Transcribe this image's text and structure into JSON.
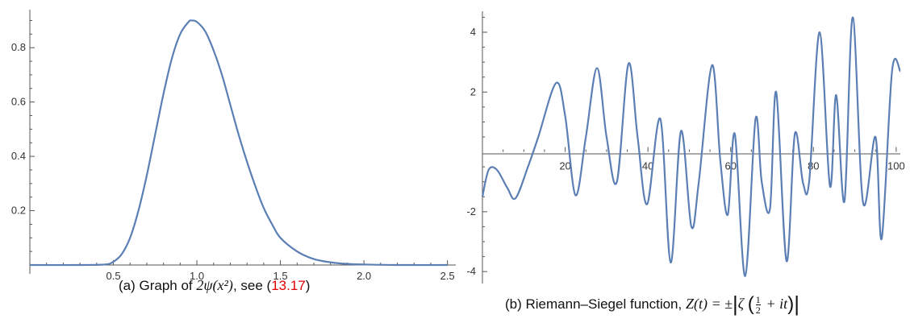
{
  "chart_data": [
    {
      "type": "line",
      "title": "",
      "xlabel": "",
      "ylabel": "",
      "xlim": [
        0,
        2.55
      ],
      "ylim": [
        0,
        0.94
      ],
      "xticks": [
        "0.5",
        "1.0",
        "1.5",
        "2.0",
        "2.5"
      ],
      "yticks": [
        "0.2",
        "0.4",
        "0.6",
        "0.8"
      ],
      "color": "#5b7fb5",
      "series": [
        {
          "x": [
            0.0,
            0.3,
            0.45,
            0.5,
            0.55,
            0.6,
            0.65,
            0.7,
            0.75,
            0.8,
            0.85,
            0.9,
            0.95,
            0.97,
            1.0,
            1.05,
            1.1,
            1.15,
            1.2,
            1.25,
            1.3,
            1.35,
            1.4,
            1.45,
            1.5,
            1.6,
            1.7,
            1.8,
            1.9,
            2.0,
            2.2,
            2.5
          ],
          "y": [
            0.0,
            0.0,
            0.002,
            0.012,
            0.04,
            0.1,
            0.2,
            0.33,
            0.48,
            0.63,
            0.76,
            0.85,
            0.895,
            0.9,
            0.895,
            0.86,
            0.79,
            0.7,
            0.59,
            0.48,
            0.38,
            0.29,
            0.21,
            0.15,
            0.1,
            0.05,
            0.022,
            0.01,
            0.004,
            0.002,
            0.0,
            0.0
          ]
        }
      ],
      "caption": {
        "prefix": "(a) Graph of ",
        "formula": "2ψ(x²)",
        "middle": ", see (",
        "ref": "13.17",
        "suffix": ")"
      }
    },
    {
      "type": "line",
      "title": "",
      "xlabel": "",
      "ylabel": "",
      "xlim": [
        0,
        101
      ],
      "ylim": [
        -4.4,
        4.7
      ],
      "xticks": [
        "20",
        "40",
        "60",
        "80",
        "100"
      ],
      "yticks": [
        "4",
        "2",
        "-2",
        "-4"
      ],
      "color": "#5b7fb5",
      "series": [
        {
          "x": [
            0,
            1.5,
            3.5,
            6,
            8,
            11,
            13.5,
            17.8,
            20,
            22.5,
            25,
            27.7,
            30,
            32.5,
            35.3,
            37.5,
            39.8,
            43,
            45.5,
            48,
            50.5,
            52.3,
            55.5,
            57.5,
            59.3,
            61,
            63.5,
            66,
            67.5,
            69.5,
            71,
            73.5,
            75.5,
            77.5,
            79,
            81.5,
            84,
            85.5,
            87.5,
            89.5,
            92,
            95,
            96.5,
            99,
            101
          ],
          "y": [
            -1.5,
            -0.6,
            -0.6,
            -1.2,
            -1.55,
            -0.5,
            0.5,
            2.3,
            1.2,
            -1.45,
            0.5,
            2.8,
            0.5,
            -1.0,
            2.95,
            0.5,
            -1.75,
            1.1,
            -3.7,
            0.7,
            -2.5,
            -1.0,
            2.9,
            -0.3,
            -2.1,
            0.6,
            -4.15,
            1.1,
            -1.0,
            -1.9,
            2.0,
            -3.65,
            0.6,
            -1.05,
            -0.95,
            4.0,
            -1.15,
            1.9,
            -1.65,
            4.5,
            -1.7,
            0.5,
            -2.9,
            2.7,
            2.7
          ]
        }
      ],
      "caption": {
        "prefix": "(b) Riemann–Siegel function, ",
        "formula_left": "Z(t) = ±",
        "zeta": "ζ",
        "frac_num": "1",
        "frac_den": "2",
        "formula_right": "+ it"
      }
    }
  ]
}
